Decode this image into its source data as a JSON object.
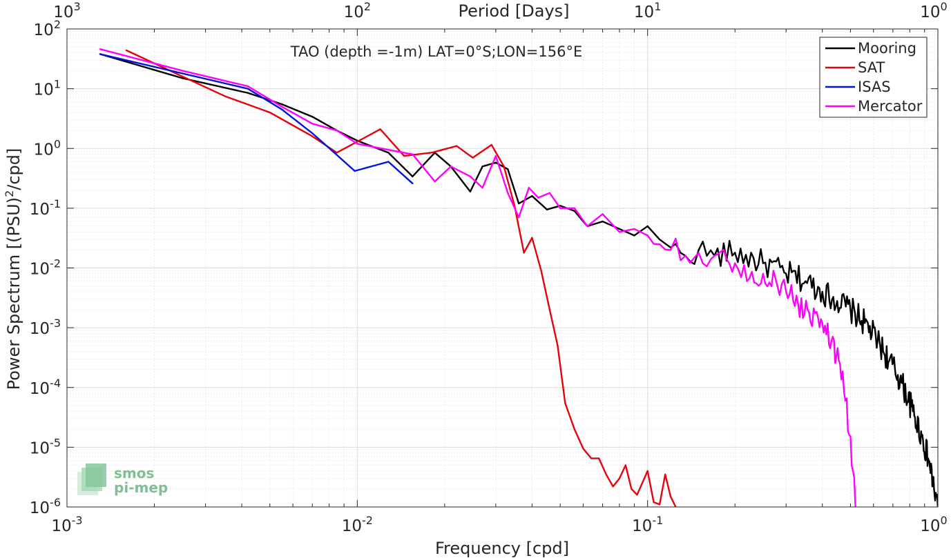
{
  "chart_data": {
    "type": "line",
    "title": "TAO (depth =-1m) LAT=0°S;LON=156°E",
    "xlabel": "Frequency [cpd]",
    "ylabel": "Power Spectrum [(PSU)²/cpd]",
    "ylabel_parts": {
      "main": "Power Spectrum [(PSU)",
      "sup": "2",
      "tail": "/cpd]"
    },
    "top_xlabel": "Period [Days]",
    "x_scale": "log",
    "y_scale": "log",
    "xlim": [
      0.001,
      1
    ],
    "ylim": [
      1e-06,
      100
    ],
    "grid": true,
    "legend_position": "top-right",
    "x_ticks": [
      {
        "base": "10",
        "exp": "-3"
      },
      {
        "base": "10",
        "exp": "-2"
      },
      {
        "base": "10",
        "exp": "-1"
      },
      {
        "base": "10",
        "exp": "0"
      }
    ],
    "top_x_ticks": [
      {
        "base": "10",
        "exp": "3"
      },
      {
        "base": "10",
        "exp": "2"
      },
      {
        "base": "10",
        "exp": "1"
      },
      {
        "base": "10",
        "exp": "0"
      }
    ],
    "y_ticks": [
      {
        "base": "10",
        "exp": "2"
      },
      {
        "base": "10",
        "exp": "1"
      },
      {
        "base": "10",
        "exp": "0"
      },
      {
        "base": "10",
        "exp": "-1"
      },
      {
        "base": "10",
        "exp": "-2"
      },
      {
        "base": "10",
        "exp": "-3"
      },
      {
        "base": "10",
        "exp": "-4"
      },
      {
        "base": "10",
        "exp": "-5"
      },
      {
        "base": "10",
        "exp": "-6"
      }
    ],
    "series": [
      {
        "name": "Mooring",
        "color": "#000000",
        "noise_tail": {
          "amp": 0.45,
          "from_x": 0.12
        },
        "x": [
          0.0013,
          0.0025,
          0.0042,
          0.0055,
          0.007,
          0.0085,
          0.01,
          0.0128,
          0.0155,
          0.0185,
          0.021,
          0.0245,
          0.027,
          0.03,
          0.033,
          0.036,
          0.04,
          0.045,
          0.05,
          0.056,
          0.062,
          0.07,
          0.08,
          0.09,
          0.1,
          0.11,
          0.12,
          0.135,
          0.15,
          0.17,
          0.2,
          0.25,
          0.3,
          0.35,
          0.4,
          0.45,
          0.5,
          0.56,
          0.62,
          0.68,
          0.75,
          0.82,
          0.88,
          0.93,
          0.97,
          1.0
        ],
        "y": [
          38,
          15,
          8.5,
          5.5,
          3.4,
          2.0,
          1.35,
          0.85,
          0.34,
          0.85,
          0.5,
          0.19,
          0.5,
          0.58,
          0.45,
          0.12,
          0.16,
          0.095,
          0.11,
          0.09,
          0.05,
          0.06,
          0.045,
          0.035,
          0.05,
          0.03,
          0.022,
          0.016,
          0.02,
          0.016,
          0.018,
          0.012,
          0.008,
          0.006,
          0.004,
          0.0028,
          0.002,
          0.0012,
          0.0006,
          0.00028,
          0.00012,
          4e-05,
          1.5e-05,
          6e-06,
          2e-06,
          1e-06
        ]
      },
      {
        "name": "SAT",
        "color": "#e8000b",
        "x": [
          0.0016,
          0.0025,
          0.0035,
          0.005,
          0.007,
          0.0085,
          0.01,
          0.012,
          0.0145,
          0.018,
          0.022,
          0.025,
          0.029,
          0.032,
          0.0348,
          0.0375,
          0.04,
          0.043,
          0.046,
          0.049,
          0.052,
          0.056,
          0.06,
          0.064,
          0.068,
          0.072,
          0.076,
          0.08,
          0.084,
          0.088,
          0.092,
          0.1,
          0.105,
          0.11,
          0.115,
          0.12,
          0.125
        ],
        "y": [
          44,
          16,
          7.5,
          4.0,
          1.6,
          0.85,
          1.3,
          2.1,
          0.75,
          0.85,
          1.1,
          0.7,
          1.15,
          0.5,
          0.11,
          0.018,
          0.032,
          0.009,
          0.002,
          0.0005,
          5.5e-05,
          2e-05,
          9.5e-06,
          6.5e-06,
          6.5e-06,
          3.5e-06,
          2.2e-06,
          3e-06,
          5e-06,
          2e-06,
          1.6e-06,
          4e-06,
          1.2e-06,
          1.1e-06,
          3.5e-06,
          1.5e-06,
          1e-06
        ]
      },
      {
        "name": "ISAS",
        "color": "#0013dd",
        "x": [
          0.0013,
          0.0025,
          0.0042,
          0.0055,
          0.007,
          0.0085,
          0.0098,
          0.0128,
          0.0155
        ],
        "y": [
          38,
          18,
          10,
          4.5,
          1.8,
          0.78,
          0.42,
          0.6,
          0.26
        ]
      },
      {
        "name": "Mercator",
        "color": "#ff00ff",
        "noise_tail": {
          "amp": 0.45,
          "from_x": 0.1
        },
        "x": [
          0.0013,
          0.0025,
          0.0042,
          0.0055,
          0.007,
          0.0085,
          0.01,
          0.0128,
          0.0155,
          0.0185,
          0.021,
          0.0245,
          0.027,
          0.03,
          0.033,
          0.036,
          0.039,
          0.042,
          0.046,
          0.05,
          0.056,
          0.062,
          0.07,
          0.08,
          0.09,
          0.1,
          0.11,
          0.12,
          0.135,
          0.15,
          0.17,
          0.2,
          0.22,
          0.25,
          0.28,
          0.3,
          0.33,
          0.36,
          0.4,
          0.43,
          0.46,
          0.48,
          0.5,
          0.51,
          0.52
        ],
        "y": [
          46,
          20,
          11,
          5.0,
          2.6,
          2.0,
          1.2,
          0.95,
          0.8,
          0.28,
          0.5,
          0.34,
          0.22,
          0.75,
          0.18,
          0.07,
          0.22,
          0.15,
          0.18,
          0.1,
          0.1,
          0.05,
          0.08,
          0.04,
          0.045,
          0.035,
          0.025,
          0.02,
          0.016,
          0.018,
          0.016,
          0.012,
          0.006,
          0.008,
          0.005,
          0.004,
          0.0025,
          0.0018,
          0.0012,
          0.0006,
          0.00025,
          6e-05,
          1.5e-05,
          4e-06,
          1e-06
        ]
      }
    ]
  },
  "watermark": {
    "line1": "smos",
    "line2": "pi-mep"
  }
}
